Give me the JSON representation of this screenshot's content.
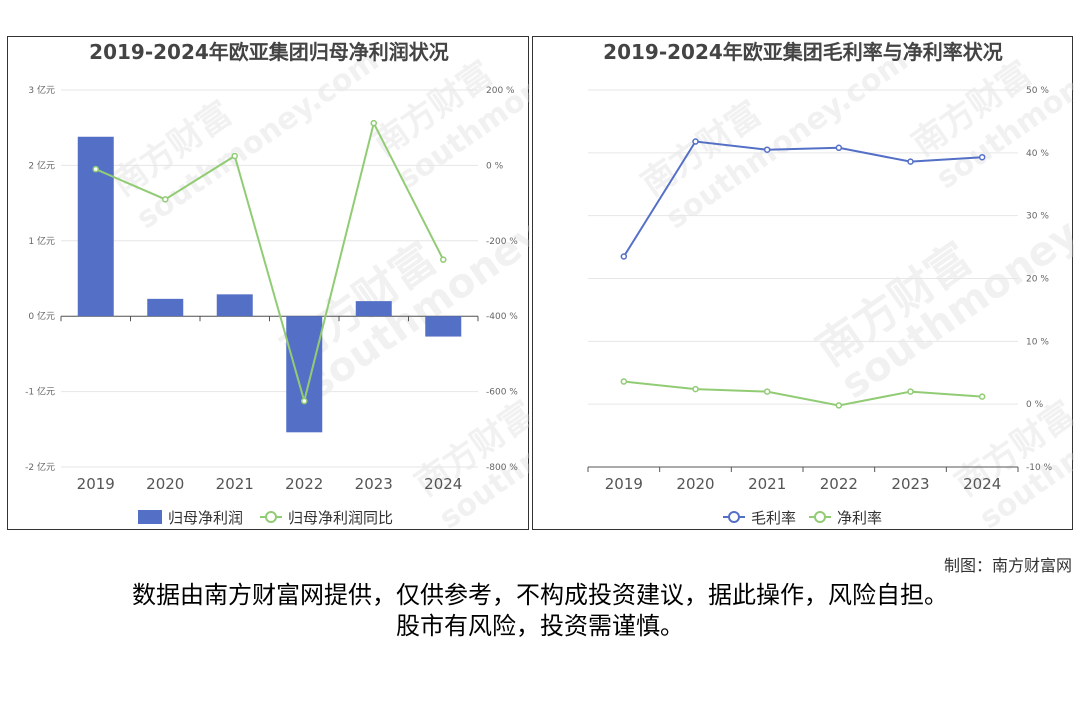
{
  "chart_data": [
    {
      "type": "bar+line",
      "title": "2019-2024年欧亚集团归母净利润状况",
      "categories": [
        "2019",
        "2020",
        "2021",
        "2022",
        "2023",
        "2024"
      ],
      "y_left": {
        "ticks": [
          "3 亿元",
          "2 亿元",
          "1 亿元",
          "0 亿元",
          "-1 亿元",
          "-2 亿元"
        ],
        "range": [
          -2,
          3
        ]
      },
      "y_right": {
        "ticks": [
          "200 %",
          "0 %",
          "-200 %",
          "-400 %",
          "-600 %",
          "-800 %"
        ],
        "range": [
          -800,
          200
        ]
      },
      "series": [
        {
          "name": "归母净利润",
          "type": "bar",
          "axis": "left",
          "color": "#5470c6",
          "values": [
            2.38,
            0.23,
            0.29,
            -1.54,
            0.2,
            -0.27
          ]
        },
        {
          "name": "归母净利润同比",
          "type": "line",
          "axis": "right",
          "color": "#91cc75",
          "values": [
            -10,
            -90,
            25,
            -625,
            112,
            -250
          ]
        }
      ],
      "grid": true,
      "legend": "bottom-center"
    },
    {
      "type": "line",
      "title": "2019-2024年欧亚集团毛利率与净利率状况",
      "categories": [
        "2019",
        "2020",
        "2021",
        "2022",
        "2023",
        "2024"
      ],
      "y_right": {
        "ticks": [
          "50 %",
          "40 %",
          "30 %",
          "20 %",
          "10 %",
          "0 %",
          "-10 %"
        ],
        "range": [
          -10,
          50
        ]
      },
      "series": [
        {
          "name": "毛利率",
          "color": "#5470c6",
          "values": [
            23.5,
            41.8,
            40.5,
            40.8,
            38.6,
            39.3
          ]
        },
        {
          "name": "净利率",
          "color": "#91cc75",
          "values": [
            3.6,
            2.4,
            2.0,
            -0.2,
            2.0,
            1.2
          ]
        }
      ],
      "grid": true,
      "legend": "bottom-center"
    }
  ],
  "watermark": {
    "cn": "南方财富",
    "en": "southmoney.com"
  },
  "footer": {
    "credit": "制图：南方财富网",
    "disclaimer_line1": "数据由南方财富网提供，仅供参考，不构成投资建议，据此操作，风险自担。",
    "disclaimer_line2": "股市有风险，投资需谨慎。"
  }
}
